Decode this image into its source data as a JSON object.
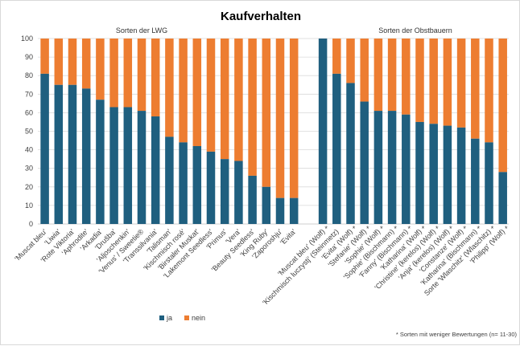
{
  "chart_data": {
    "type": "bar",
    "stacked": true,
    "title": "Kaufverhalten",
    "ylim": [
      0,
      100
    ],
    "yticks": [
      0,
      10,
      20,
      30,
      40,
      50,
      60,
      70,
      80,
      90,
      100
    ],
    "legend": [
      "ja",
      "nein"
    ],
    "legend_position": "bottom-left",
    "colors": {
      "ja": "#1f5f7f",
      "nein": "#ed7d31",
      "grid": "#d9d9d9",
      "axis": "#bfbfbf"
    },
    "footnote": "* Sorten mit weniger Bewertungen (n= 11-30)",
    "panels": [
      {
        "subtitle": "Sorten der LWG",
        "categories": [
          "'Muscat bleu'",
          "'Liwia'",
          "'Rote Viktoria'",
          "'Aphrodite'",
          "'Arkadia'",
          "'Drušba'",
          "'Aljoschenkin'",
          "'Venus' / Sweetie®",
          "'Transsilvania'",
          "'Talisman'",
          "'Kischmisch rosé'",
          "'Birstaler Muskat'",
          "'Lakemont Seedless'",
          "'Primus'",
          "'Vera'",
          "'Beauty Seedless'",
          "'King Ruby'",
          "'Zaporoshju'",
          "'Evita'"
        ],
        "series": [
          {
            "name": "ja",
            "values": [
              81,
              75,
              75,
              73,
              67,
              63,
              63,
              61,
              58,
              47,
              44,
              42,
              39,
              35,
              34,
              26,
              20,
              14,
              14
            ]
          },
          {
            "name": "nein",
            "values": [
              19,
              25,
              25,
              27,
              33,
              37,
              37,
              39,
              42,
              53,
              56,
              58,
              61,
              65,
              66,
              74,
              80,
              86,
              86
            ]
          }
        ]
      },
      {
        "subtitle": "Sorten der Obstbauern",
        "categories": [
          "'Muscat bleu' (Wolf)",
          "'Kischmisch luczystj' (Steinmetz)",
          "'Evita' (Wolf)",
          "'Stefanie' (Wolf)",
          "'Sophie' (Wolf)",
          "'Sophie' (Bischmann)",
          "'Fanny' (Bischmann)",
          "'Katharina' (Wolf)",
          "'Christine' (kerelos) (Wolf)",
          "'Anja' (kerelos) (Wolf)",
          "'Constanze' (Wolf)",
          "'Katharina' (Bischmann)",
          "Sorte 'Wlaschitz' (Wlaschitz)",
          "'Philipp' (Wolf)"
        ],
        "stars": [
          "*",
          "",
          "*",
          "*",
          "*",
          "*",
          "*",
          "*",
          "*",
          "*",
          "*",
          "*",
          "*",
          "*"
        ],
        "series": [
          {
            "name": "ja",
            "values": [
              100,
              81,
              76,
              66,
              61,
              61,
              59,
              55,
              54,
              53,
              52,
              46,
              44,
              28
            ]
          },
          {
            "name": "nein",
            "values": [
              0,
              19,
              24,
              34,
              39,
              39,
              41,
              45,
              46,
              47,
              48,
              54,
              56,
              72
            ]
          }
        ]
      }
    ]
  }
}
